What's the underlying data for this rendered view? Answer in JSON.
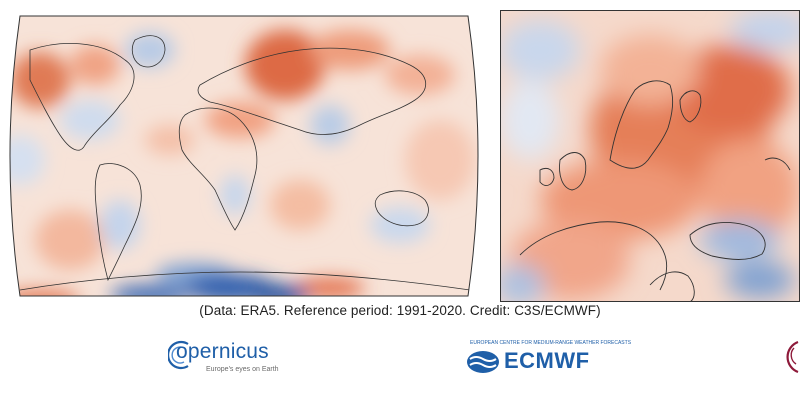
{
  "credit": "(Data: ERA5.  Reference period: 1991-2020.  Credit: C3S/ECMWF)",
  "logos": {
    "copernicus": {
      "name": "opernicus",
      "tagline": "Europe's eyes on Earth"
    },
    "ecmwf": {
      "name": "ECMWF",
      "tagline": "EUROPEAN CENTRE FOR MEDIUM-RANGE WEATHER FORECASTS"
    }
  },
  "colors": {
    "warm_strong": "#d9603b",
    "warm": "#f1a182",
    "warm_light": "#f8d5c4",
    "neutral": "#f3f1ef",
    "cool_light": "#d3dff0",
    "cool": "#8fb0d8",
    "cool_strong": "#2a5aa8",
    "brand_blue": "#1f5fa8",
    "partner_red": "#8e1a3a"
  }
}
